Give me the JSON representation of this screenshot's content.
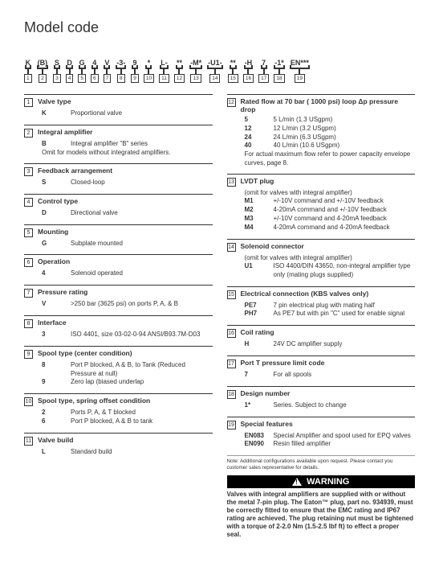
{
  "title": "Model code",
  "strip": [
    {
      "t": "K",
      "n": "1"
    },
    {
      "t": "(B)",
      "n": "2"
    },
    {
      "t": "S",
      "n": "3"
    },
    {
      "t": "D",
      "n": "4"
    },
    {
      "t": "G",
      "n": "5"
    },
    {
      "t": "4",
      "n": "6"
    },
    {
      "t": "V",
      "n": "7"
    },
    {
      "t": "-3-",
      "n": "8"
    },
    {
      "t": "9",
      "n": "9"
    },
    {
      "t": "*",
      "n": "10"
    },
    {
      "t": "L-",
      "n": "11"
    },
    {
      "t": "**",
      "n": "12"
    },
    {
      "t": "-M*",
      "n": "13"
    },
    {
      "t": "-U1-",
      "n": "14"
    },
    {
      "t": "**",
      "n": "15"
    },
    {
      "t": "-H",
      "n": "16"
    },
    {
      "t": "7",
      "n": "17"
    },
    {
      "t": "-1*",
      "n": "18"
    },
    {
      "t": "EN***",
      "n": "19"
    }
  ],
  "left": [
    {
      "n": "1",
      "title": "Valve type",
      "rows": [
        {
          "c": "K",
          "d": "Proportional valve"
        }
      ]
    },
    {
      "n": "2",
      "title": "Integral amplifier",
      "rows": [
        {
          "c": "B",
          "d": "Integral amplifier \"B\" series"
        }
      ],
      "note": "Omit for models without integrated amplifiers."
    },
    {
      "n": "3",
      "title": "Feedback arrangement",
      "rows": [
        {
          "c": "S",
          "d": "Closed-loop"
        }
      ]
    },
    {
      "n": "4",
      "title": "Control type",
      "rows": [
        {
          "c": "D",
          "d": "Directional valve"
        }
      ]
    },
    {
      "n": "5",
      "title": "Mounting",
      "rows": [
        {
          "c": "G",
          "d": "Subplate mounted"
        }
      ]
    },
    {
      "n": "6",
      "title": "Operation",
      "rows": [
        {
          "c": "4",
          "d": "Solenoid operated"
        }
      ]
    },
    {
      "n": "7",
      "title": "Pressure rating",
      "rows": [
        {
          "c": "V",
          "d": ">250 bar (3625 psi) on ports P, A, & B"
        }
      ]
    },
    {
      "n": "8",
      "title": "Interface",
      "rows": [
        {
          "c": "3",
          "d": "ISO 4401, size 03-02-0-94 ANSI/B93.7M-D03"
        }
      ]
    },
    {
      "n": "9",
      "title": "Spool type (center condition)",
      "rows": [
        {
          "c": "8",
          "d": "Port P blocked, A & B, to Tank (Reduced Pressure at null)"
        },
        {
          "c": "9",
          "d": "Zero lap (biased underlap"
        }
      ]
    },
    {
      "n": "10",
      "title": "Spool type, spring offset condition",
      "rows": [
        {
          "c": "2",
          "d": "Ports P, A, & T blocked"
        },
        {
          "c": "6",
          "d": "Port P blocked, A & B to tank"
        }
      ]
    },
    {
      "n": "11",
      "title": "Valve build",
      "rows": [
        {
          "c": "L",
          "d": "Standard build"
        }
      ]
    }
  ],
  "right": [
    {
      "n": "12",
      "title": "Rated flow at 70 bar ( 1000 psi) loop Δp pressure drop",
      "rows": [
        {
          "c": "5",
          "d": "5 L/min (1.3 USgpm)"
        },
        {
          "c": "12",
          "d": "12 L/min (3.2 USgpm)"
        },
        {
          "c": "24",
          "d": "24 L/min (6.3 USgpm)"
        },
        {
          "c": "40",
          "d": "40 L/min (10.6 USgpm)"
        }
      ],
      "note": "For actual maximum flow refer to power capacity envelope curves, page 8."
    },
    {
      "n": "13",
      "title": "LVDT plug",
      "pre": "(omit for valves with integral amplifier)",
      "rows": [
        {
          "c": "M1",
          "d": "+/-10V command and +/-10V feedback"
        },
        {
          "c": "M2",
          "d": "4-20mA command and +/-10V feedback"
        },
        {
          "c": "M3",
          "d": "+/-10V command and 4-20mA feedback"
        },
        {
          "c": "M4",
          "d": "4-20mA command and 4-20mA feedback"
        }
      ]
    },
    {
      "n": "14",
      "title": "Solenoid connector",
      "pre": "(omit for valves with integral amplifier)",
      "rows": [
        {
          "c": "U1",
          "d": "ISO 4400/DIN 43650, non-integral amplifier type only (mating plugs supplied)"
        }
      ]
    },
    {
      "n": "15",
      "title": "Electrical connection (KBS valves only)",
      "rows": [
        {
          "c": "PE7",
          "d": "7 pin electrical plug with mating half"
        },
        {
          "c": "PH7",
          "d": "As PE7 but with pin \"C\" used for enable signal"
        }
      ]
    },
    {
      "n": "16",
      "title": "Coil rating",
      "rows": [
        {
          "c": "H",
          "d": "24V DC amplifier supply"
        }
      ]
    },
    {
      "n": "17",
      "title": "Port T pressure limit code",
      "rows": [
        {
          "c": "7",
          "d": "For all spools"
        }
      ]
    },
    {
      "n": "18",
      "title": "Design number",
      "rows": [
        {
          "c": "1*",
          "d": "Series. Subject to change"
        }
      ]
    },
    {
      "n": "19",
      "title": "Special features",
      "rows": [
        {
          "c": "EN083",
          "d": "Special Amplifier and spool used for EPQ valves"
        },
        {
          "c": "EN090",
          "d": "Resin filled amplifier"
        }
      ]
    }
  ],
  "footnote": "Note: Additional configurations available upon request. Please contact you customer sales representative for details.",
  "warning_label": "WARNING",
  "warning_text": "Valves with integral amplifiers are supplied with or without the metal 7-pin plug. The Eaton™ plug, part no. 934939, must be correctly fitted to ensure that the EMC rating and IP67 rating are achieved. The plug retaining nut must be tightened with a torque of 2-2.0 Nm (1.5-2.5 lbf ft) to effect a proper seal."
}
